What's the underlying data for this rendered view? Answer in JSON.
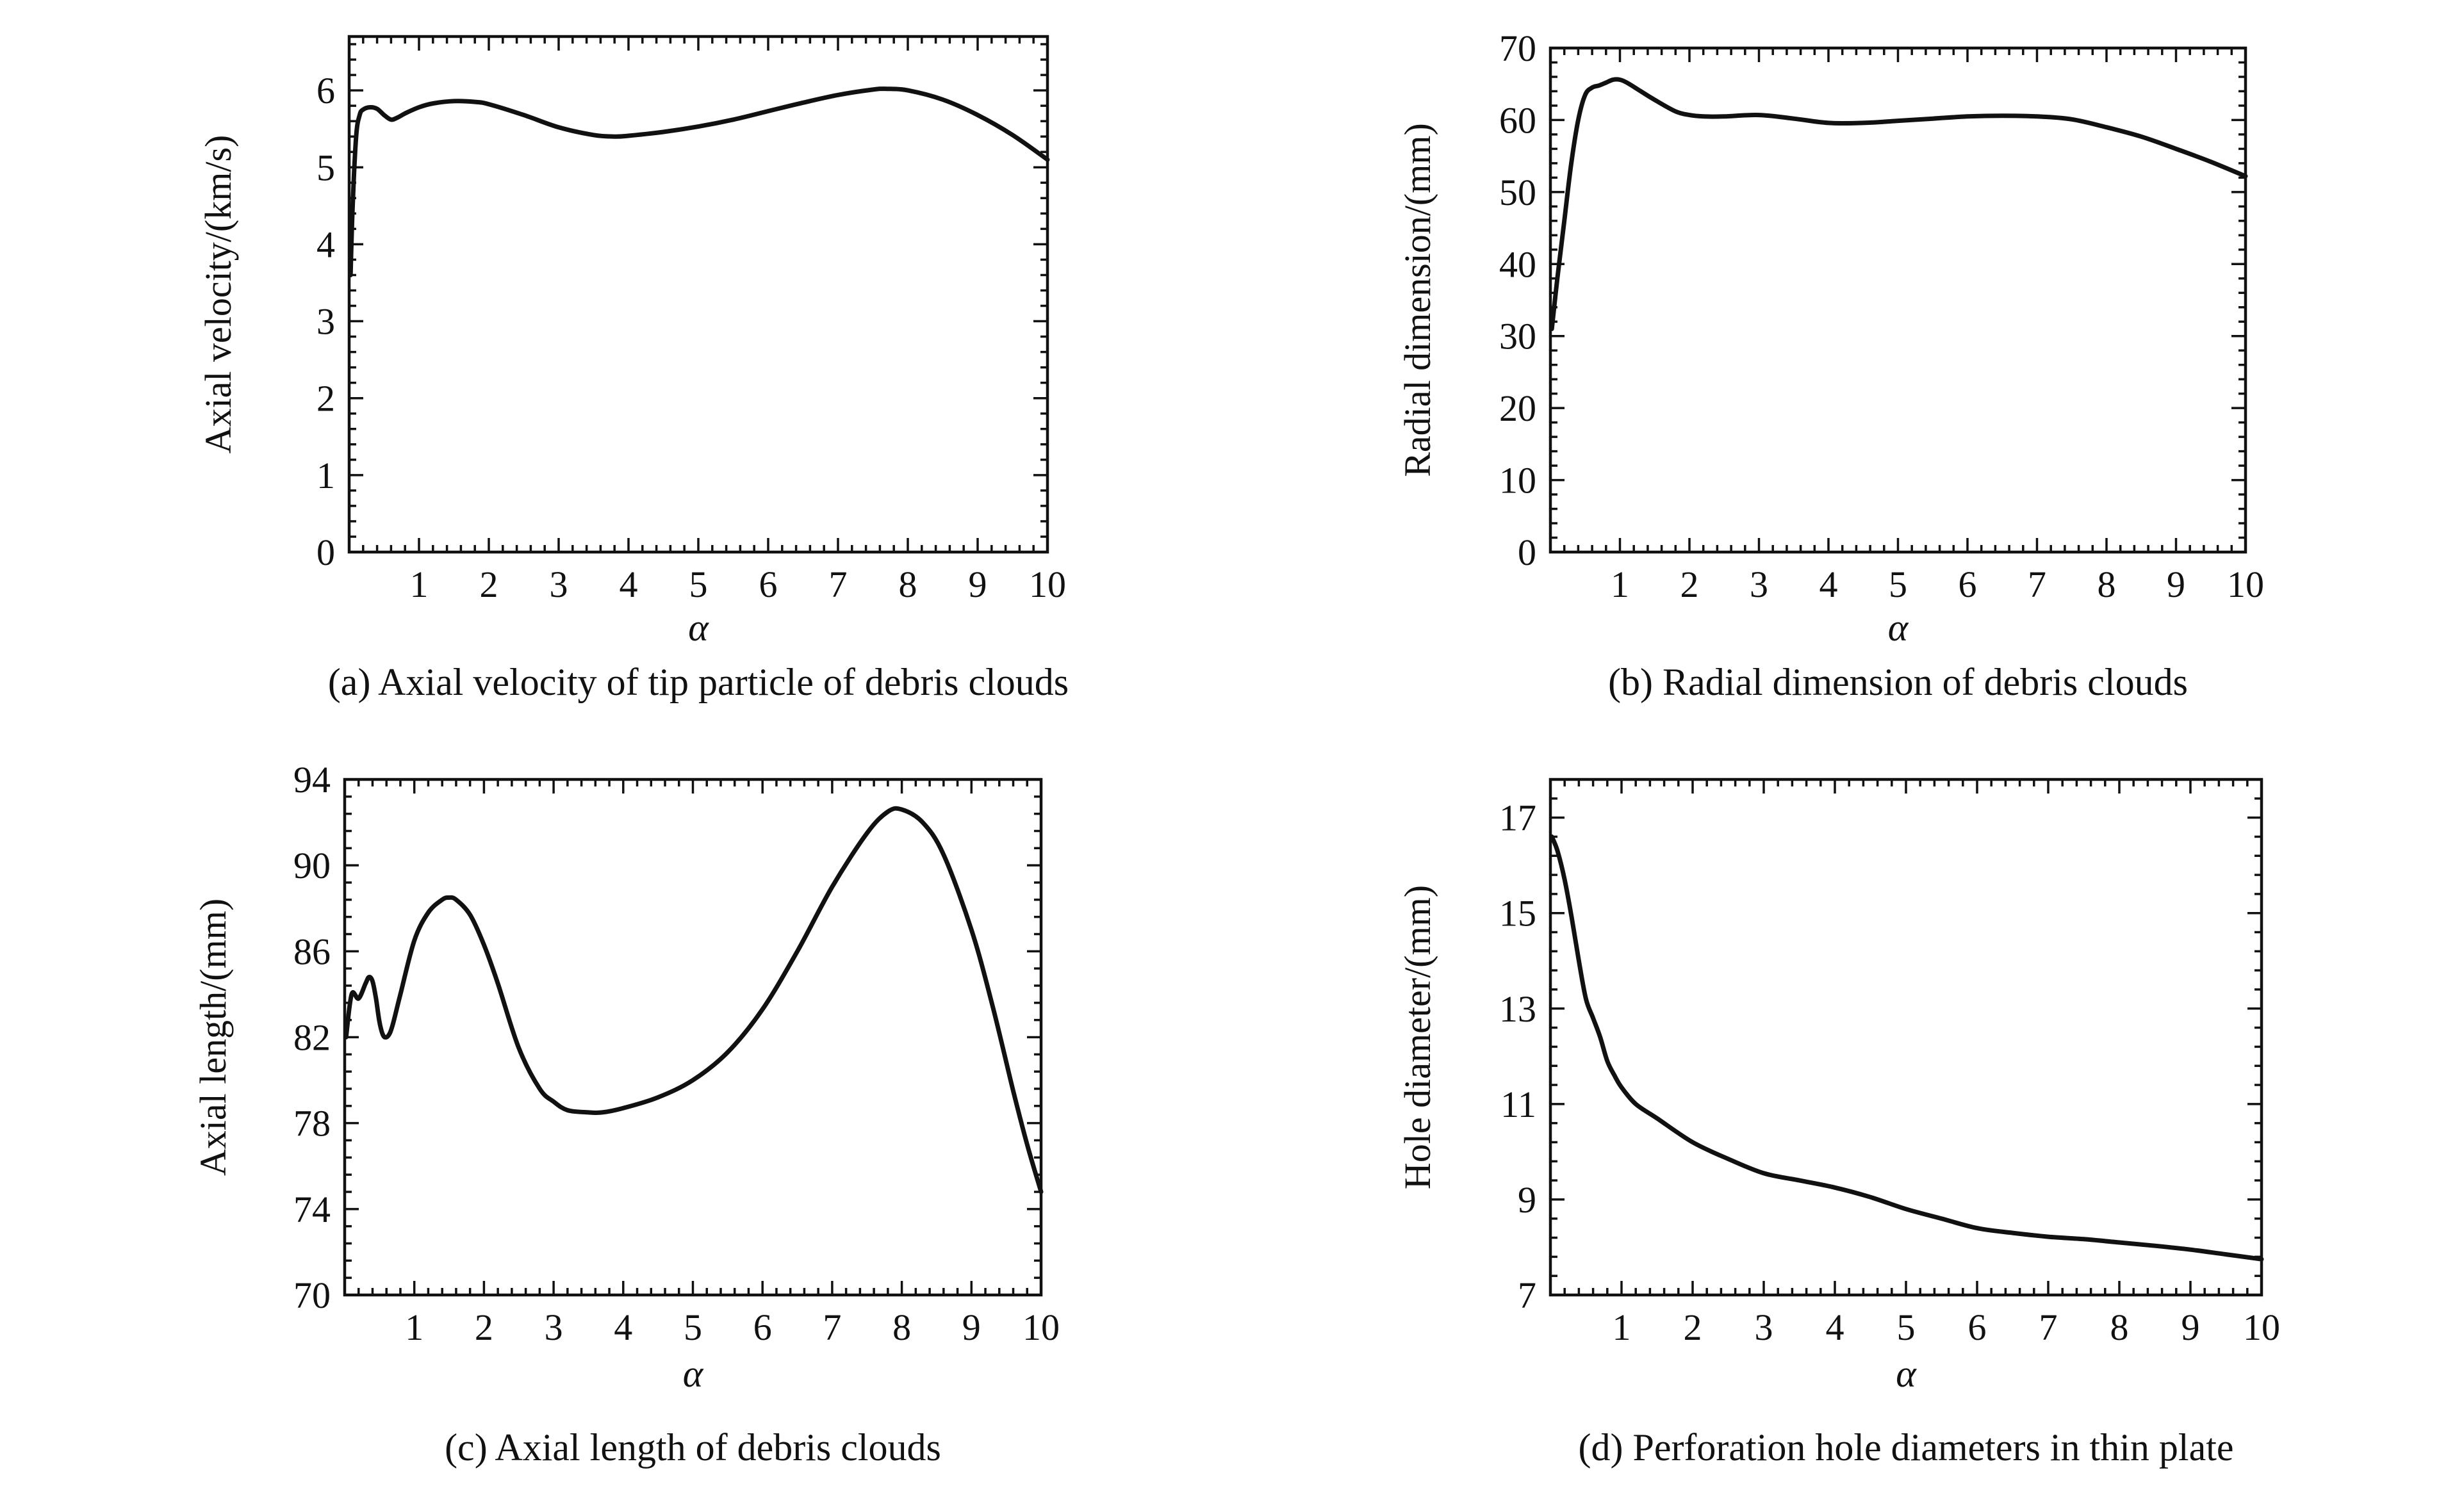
{
  "chart_data": [
    {
      "type": "line",
      "caption": "(a) Axial velocity of tip particle of debris clouds",
      "xlabel": "α",
      "ylabel": "Axial velocity/(km/s)",
      "xlim": [
        0,
        10
      ],
      "ylim": [
        0,
        6.7
      ],
      "xticks": [
        1,
        2,
        3,
        4,
        5,
        6,
        7,
        8,
        9,
        10
      ],
      "yticks": [
        0,
        1,
        2,
        3,
        4,
        5,
        6
      ],
      "x": [
        0.02,
        0.05,
        0.1,
        0.15,
        0.2,
        0.3,
        0.4,
        0.5,
        0.6,
        0.7,
        0.8,
        1.0,
        1.2,
        1.5,
        1.8,
        2.0,
        2.5,
        3.0,
        3.5,
        3.8,
        4.0,
        4.5,
        5.0,
        5.5,
        6.0,
        6.5,
        7.0,
        7.5,
        7.7,
        8.0,
        8.5,
        9.0,
        9.5,
        10.0
      ],
      "y": [
        3.6,
        4.5,
        5.4,
        5.68,
        5.75,
        5.78,
        5.76,
        5.68,
        5.62,
        5.65,
        5.7,
        5.78,
        5.83,
        5.86,
        5.85,
        5.82,
        5.68,
        5.52,
        5.42,
        5.4,
        5.41,
        5.46,
        5.53,
        5.62,
        5.73,
        5.84,
        5.94,
        6.01,
        6.02,
        6.0,
        5.88,
        5.68,
        5.42,
        5.1
      ]
    },
    {
      "type": "line",
      "caption": "(b) Radial dimension of debris clouds",
      "xlabel": "α",
      "ylabel": "Radial dimension/(mm)",
      "xlim": [
        0,
        10
      ],
      "ylim": [
        0,
        70
      ],
      "xticks": [
        1,
        2,
        3,
        4,
        5,
        6,
        7,
        8,
        9,
        10
      ],
      "yticks": [
        0,
        10,
        20,
        30,
        40,
        50,
        60,
        70
      ],
      "x": [
        0.02,
        0.1,
        0.2,
        0.3,
        0.4,
        0.5,
        0.6,
        0.7,
        0.8,
        0.9,
        1.0,
        1.1,
        1.3,
        1.5,
        1.8,
        2.0,
        2.2,
        2.5,
        3.0,
        3.5,
        4.0,
        4.5,
        5.0,
        5.5,
        6.0,
        6.5,
        7.0,
        7.5,
        8.0,
        8.5,
        9.0,
        9.5,
        10.0
      ],
      "y": [
        31,
        38,
        46,
        54,
        60,
        63.5,
        64.5,
        64.8,
        65.2,
        65.6,
        65.6,
        65.2,
        64,
        62.8,
        61.2,
        60.7,
        60.5,
        60.5,
        60.7,
        60.2,
        59.6,
        59.6,
        59.9,
        60.2,
        60.5,
        60.6,
        60.5,
        60.1,
        59,
        57.7,
        56,
        54.2,
        52.2
      ]
    },
    {
      "type": "line",
      "caption": "(c) Axial length of debris clouds",
      "xlabel": "α",
      "ylabel": "Axial length/(mm)",
      "xlim": [
        0,
        10
      ],
      "ylim": [
        70,
        94
      ],
      "xticks": [
        1,
        2,
        3,
        4,
        5,
        6,
        7,
        8,
        9,
        10
      ],
      "yticks": [
        70,
        74,
        78,
        82,
        86,
        90,
        94
      ],
      "x": [
        0.02,
        0.1,
        0.2,
        0.3,
        0.35,
        0.4,
        0.45,
        0.5,
        0.55,
        0.6,
        0.65,
        0.7,
        0.8,
        1.0,
        1.2,
        1.4,
        1.5,
        1.6,
        1.8,
        2.0,
        2.2,
        2.5,
        2.8,
        3.0,
        3.2,
        3.5,
        3.7,
        4.0,
        4.5,
        5.0,
        5.5,
        6.0,
        6.5,
        7.0,
        7.5,
        7.8,
        8.0,
        8.3,
        8.6,
        9.0,
        9.3,
        9.6,
        9.8,
        10.0
      ],
      "y": [
        82,
        84,
        83.8,
        84.5,
        84.8,
        84.6,
        83.8,
        82.7,
        82.1,
        82,
        82.2,
        82.7,
        84,
        86.5,
        87.8,
        88.4,
        88.5,
        88.4,
        87.7,
        86.3,
        84.5,
        81.5,
        79.6,
        79,
        78.6,
        78.5,
        78.5,
        78.7,
        79.2,
        80,
        81.3,
        83.3,
        86,
        89,
        91.5,
        92.5,
        92.6,
        92,
        90.5,
        87,
        83.5,
        79.5,
        77,
        74.8
      ]
    },
    {
      "type": "line",
      "caption": "(d) Perforation hole diameters in thin plate",
      "xlabel": "α",
      "ylabel": "Hole diameter/(mm)",
      "xlim": [
        0,
        10
      ],
      "ylim": [
        7,
        17.8
      ],
      "xticks": [
        1,
        2,
        3,
        4,
        5,
        6,
        7,
        8,
        9,
        10
      ],
      "yticks": [
        7,
        9,
        11,
        13,
        15,
        17
      ],
      "x": [
        0.02,
        0.1,
        0.2,
        0.3,
        0.4,
        0.5,
        0.6,
        0.7,
        0.8,
        0.9,
        1.0,
        1.2,
        1.5,
        2.0,
        2.5,
        3.0,
        3.5,
        4.0,
        4.5,
        5.0,
        5.5,
        6.0,
        6.5,
        7.0,
        7.5,
        8.0,
        8.5,
        9.0,
        9.5,
        10.0
      ],
      "y": [
        16.6,
        16.3,
        15.7,
        14.9,
        14.0,
        13.2,
        12.8,
        12.4,
        11.9,
        11.6,
        11.35,
        11.0,
        10.7,
        10.2,
        9.85,
        9.55,
        9.4,
        9.25,
        9.05,
        8.8,
        8.6,
        8.4,
        8.3,
        8.22,
        8.17,
        8.1,
        8.03,
        7.95,
        7.85,
        7.75
      ]
    }
  ]
}
